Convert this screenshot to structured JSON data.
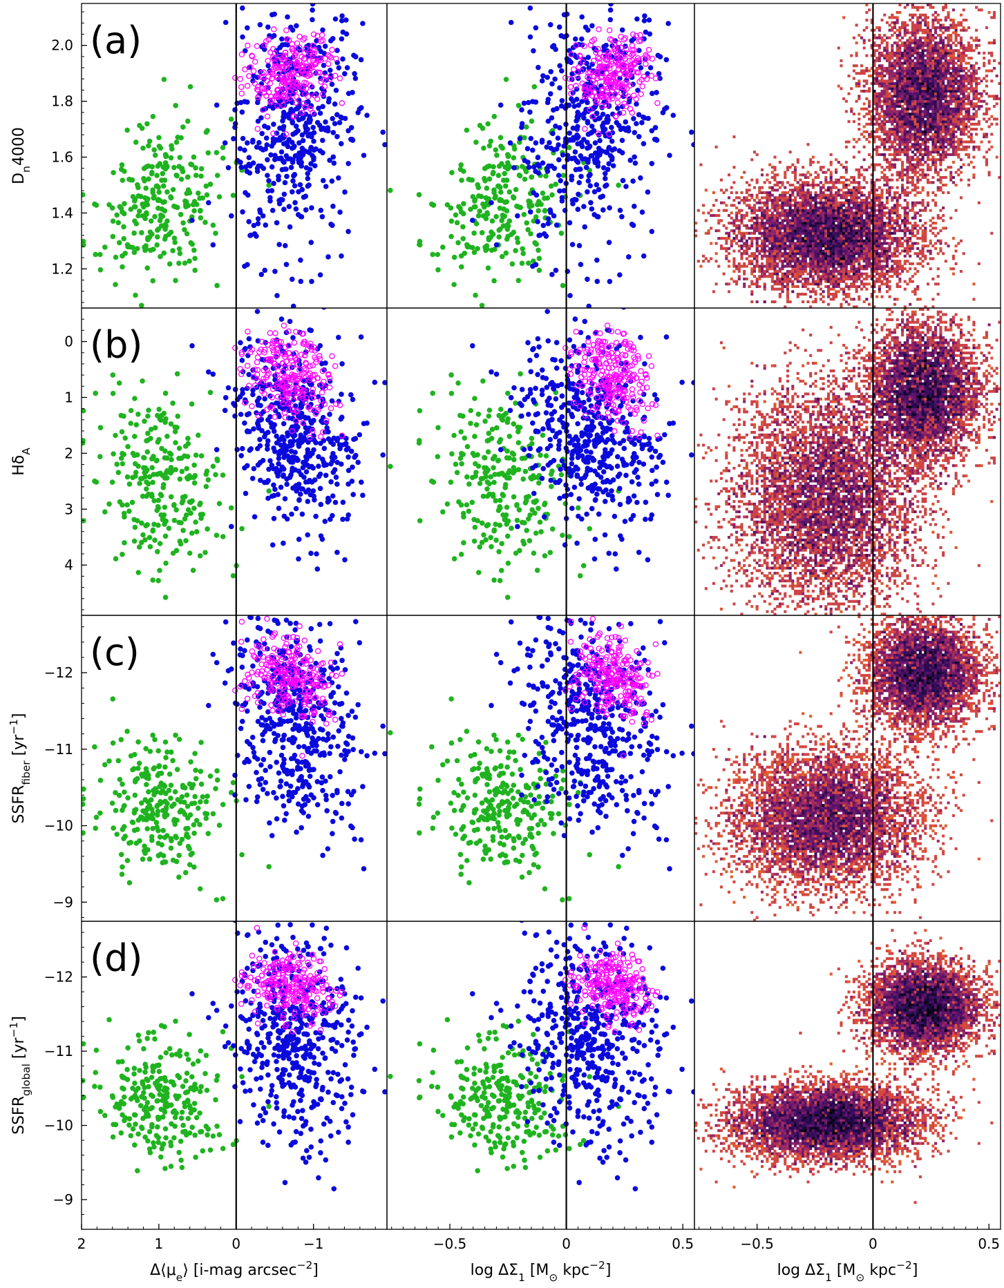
{
  "chart_data": {
    "type": "scatter",
    "layout": "4 rows x 3 columns, shared y per row, shared x per column",
    "rows": [
      {
        "panel_label": "(a)",
        "ylabel": "D_n4000",
        "ylabel_main": "D",
        "ylabel_sub": "n",
        "ylabel_tail": "4000",
        "ylim": [
          1.06,
          2.15
        ],
        "inverted": false,
        "yticks": [
          "1.2",
          "1.4",
          "1.6",
          "1.8",
          "2.0"
        ]
      },
      {
        "panel_label": "(b)",
        "ylabel": "Hδ_A",
        "ylabel_main": "Hδ",
        "ylabel_sub": "A",
        "ylabel_tail": "",
        "ylim": [
          4.9,
          -0.6
        ],
        "inverted": true,
        "yticks": [
          "0",
          "1",
          "2",
          "3",
          "4"
        ]
      },
      {
        "panel_label": "(c)",
        "ylabel": "SSFR_fiber [yr^-1]",
        "ylabel_main": "SSFR",
        "ylabel_sub": "fiber",
        "ylabel_tail": " [yr",
        "ylabel_sup": "−1",
        "ylabel_end": "]",
        "ylim": [
          -8.75,
          -12.75
        ],
        "inverted": true,
        "yticks": [
          "−9",
          "−10",
          "−11",
          "−12"
        ]
      },
      {
        "panel_label": "(d)",
        "ylabel": "SSFR_global [yr^-1]",
        "ylabel_main": "SSFR",
        "ylabel_sub": "global",
        "ylabel_tail": " [yr",
        "ylabel_sup": "−1",
        "ylabel_end": "]",
        "ylim": [
          -8.6,
          -12.75
        ],
        "inverted": true,
        "yticks": [
          "−9",
          "−10",
          "−11",
          "−12"
        ]
      }
    ],
    "columns": [
      {
        "xlabel": "Δ⟨μe⟩ [i-mag arcsec−2]",
        "xlabel_a": "Δ⟨μ",
        "xlabel_sub": "e",
        "xlabel_b": "⟩ [i-mag arcsec",
        "xlabel_sup": "−2",
        "xlabel_c": "]",
        "xlim": [
          2,
          -1.95
        ],
        "xticks": [
          "2",
          "1",
          "0",
          "−1"
        ],
        "xtick_values": [
          2,
          1,
          0,
          -1
        ],
        "vline": 0,
        "kind": "scatter"
      },
      {
        "xlabel": "log ΔΣ1 [M⊙ kpc−2]",
        "xlabel_a": "log ΔΣ",
        "xlabel_sub": "1",
        "xlabel_b": " [M",
        "xlabel_sub2": "⊙",
        "xlabel_c": " kpc",
        "xlabel_sup": "−2",
        "xlabel_d": "]",
        "xlim": [
          -0.77,
          0.55
        ],
        "xticks": [
          "−0.5",
          "0",
          "0.5"
        ],
        "xtick_values": [
          -0.5,
          0,
          0.5
        ],
        "vline": 0,
        "kind": "scatter"
      },
      {
        "xlabel": "log ΔΣ1 [M⊙ kpc−2]",
        "xlabel_a": "log ΔΣ",
        "xlabel_sub": "1",
        "xlabel_b": " [M",
        "xlabel_sub2": "⊙",
        "xlabel_c": " kpc",
        "xlabel_sup": "−2",
        "xlabel_d": "]",
        "xlim": [
          -0.77,
          0.55
        ],
        "xticks": [
          "−0.5",
          "0",
          "0.5"
        ],
        "xtick_values": [
          -0.5,
          0,
          0.5
        ],
        "vline": 0,
        "kind": "heatmap"
      }
    ],
    "series": [
      {
        "name": "green population",
        "color": "#1fb31f",
        "marker": "filled-circle"
      },
      {
        "name": "blue population",
        "color": "#0a0adc",
        "marker": "filled-circle"
      },
      {
        "name": "magenta population",
        "color": "#ff00ff",
        "marker": "open-circle"
      }
    ],
    "clusters": {
      "green": {
        "n": 260,
        "x_mu": [
          1.05,
          -0.3
        ],
        "x_sd": [
          0.45,
          0.16
        ],
        "rows": [
          {
            "y_mu": 1.44,
            "y_sd": 0.17
          },
          {
            "y_mu": 2.45,
            "y_sd": 0.95
          },
          {
            "y_mu": -10.25,
            "y_sd": 0.55
          },
          {
            "y_mu": -10.35,
            "y_sd": 0.55
          }
        ]
      },
      "blue": {
        "n": 500,
        "x_mu": [
          -0.75,
          0.1
        ],
        "x_sd": [
          0.42,
          0.16
        ],
        "rows": [
          {
            "y_mu": 1.72,
            "y_sd": 0.28
          },
          {
            "y_mu": 1.6,
            "y_sd": 1.0
          },
          {
            "y_mu": -11.4,
            "y_sd": 0.9
          },
          {
            "y_mu": -11.2,
            "y_sd": 0.85
          }
        ]
      },
      "magenta": {
        "n": 230,
        "x_mu": [
          -0.7,
          0.2
        ],
        "x_sd": [
          0.28,
          0.08
        ],
        "rows": [
          {
            "y_mu": 1.9,
            "y_sd": 0.09
          },
          {
            "y_mu": 0.6,
            "y_sd": 0.5
          },
          {
            "y_mu": -11.95,
            "y_sd": 0.35
          },
          {
            "y_mu": -11.9,
            "y_sd": 0.28
          }
        ]
      }
    },
    "heatmap": {
      "colormap": "inferno_r",
      "bins": [
        120,
        120
      ],
      "components": [
        {
          "weight": 0.55,
          "x_mu": -0.2,
          "x_sd": 0.2,
          "rows": [
            {
              "y_mu": 1.32,
              "y_sd": 0.1
            },
            {
              "y_mu": 2.8,
              "y_sd": 1.0
            },
            {
              "y_mu": -10.1,
              "y_sd": 0.45
            },
            {
              "y_mu": -10.05,
              "y_sd": 0.25
            }
          ]
        },
        {
          "weight": 0.45,
          "x_mu": 0.22,
          "x_sd": 0.12,
          "rows": [
            {
              "y_mu": 1.82,
              "y_sd": 0.14
            },
            {
              "y_mu": 0.9,
              "y_sd": 0.6
            },
            {
              "y_mu": -12.0,
              "y_sd": 0.35
            },
            {
              "y_mu": -11.6,
              "y_sd": 0.3
            }
          ]
        }
      ]
    }
  }
}
